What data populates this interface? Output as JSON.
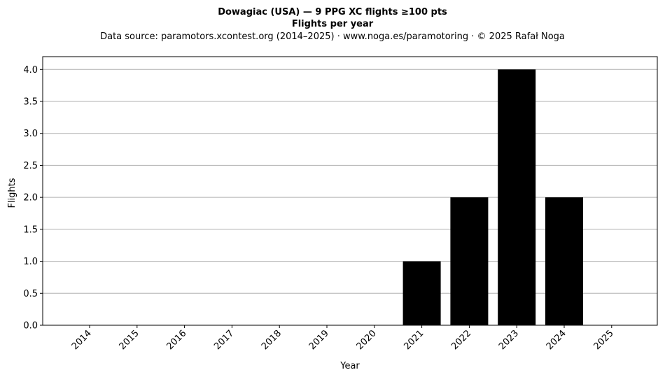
{
  "chart_data": {
    "type": "bar",
    "title": "Dowagiac (USA)  —  9 PPG XC flights ≥100 pts",
    "subtitle": "Flights per year",
    "source_note": "Data source: paramotors.xcontest.org (2014–2025)  ·  www.noga.es/paramotoring  ·  © 2025 Rafał Noga",
    "xlabel": "Year",
    "ylabel": "Flights",
    "categories": [
      "2014",
      "2015",
      "2016",
      "2017",
      "2018",
      "2019",
      "2020",
      "2021",
      "2022",
      "2023",
      "2024",
      "2025"
    ],
    "values": [
      0,
      0,
      0,
      0,
      0,
      0,
      0,
      1,
      2,
      4,
      2,
      0
    ],
    "ylim": [
      0,
      4.2
    ],
    "yticks": [
      "0.0",
      "0.5",
      "1.0",
      "1.5",
      "2.0",
      "2.5",
      "3.0",
      "3.5",
      "4.0"
    ],
    "grid": "horizontal",
    "bar_color": "#000000",
    "grid_color": "#b0b0b0"
  }
}
